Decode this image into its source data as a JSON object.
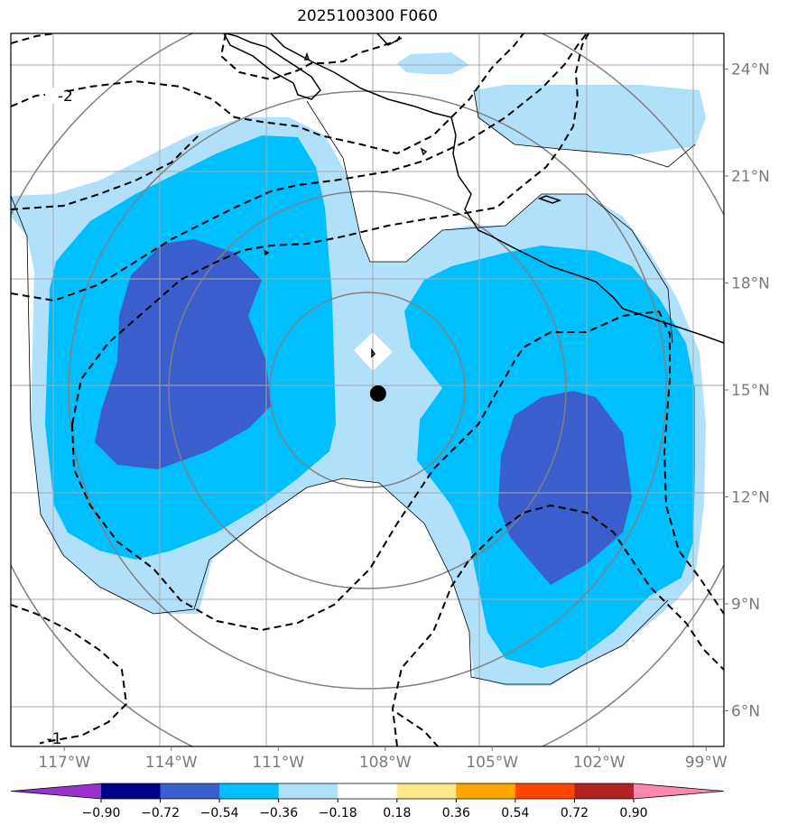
{
  "title": "2025100300 F060",
  "map": {
    "lon_range": [
      -118.5,
      -98.5
    ],
    "lat_range": [
      5,
      25
    ],
    "lon_ticks": [
      {
        "v": -117,
        "label": "117°W"
      },
      {
        "v": -114,
        "label": "114°W"
      },
      {
        "v": -111,
        "label": "111°W"
      },
      {
        "v": -108,
        "label": "108°W"
      },
      {
        "v": -105,
        "label": "105°W"
      },
      {
        "v": -102,
        "label": "102°W"
      },
      {
        "v": -99,
        "label": "99°W"
      }
    ],
    "lat_ticks": [
      {
        "v": 24,
        "label": "24°N"
      },
      {
        "v": 21,
        "label": "21°N"
      },
      {
        "v": 18,
        "label": "18°N"
      },
      {
        "v": 15,
        "label": "15°N"
      },
      {
        "v": 12,
        "label": "12°N"
      },
      {
        "v": 9,
        "label": "9°N"
      },
      {
        "v": 6,
        "label": "6°N"
      }
    ],
    "center_marker": {
      "lon": -108.2,
      "lat": 14.9
    },
    "range_rings_deg": [
      2.7,
      5.5,
      8.3,
      11.0
    ],
    "contour_labels": [
      {
        "text": "-2",
        "lon": -118.2,
        "lat": 23.1
      },
      {
        "text": "-1",
        "lon": -117.8,
        "lat": 5.1
      }
    ]
  },
  "colorbar": {
    "colors": [
      "#9932cc",
      "#00008b",
      "#3a5fcd",
      "#00bfff",
      "#b0e0fa",
      "#ffffff",
      "#ffe88a",
      "#ffa500",
      "#ff4500",
      "#b22222",
      "#ff88b0"
    ],
    "labels": [
      "−0.90",
      "−0.72",
      "−0.54",
      "−0.36",
      "−0.18",
      "0.18",
      "0.36",
      "0.54",
      "0.72",
      "0.90"
    ]
  }
}
